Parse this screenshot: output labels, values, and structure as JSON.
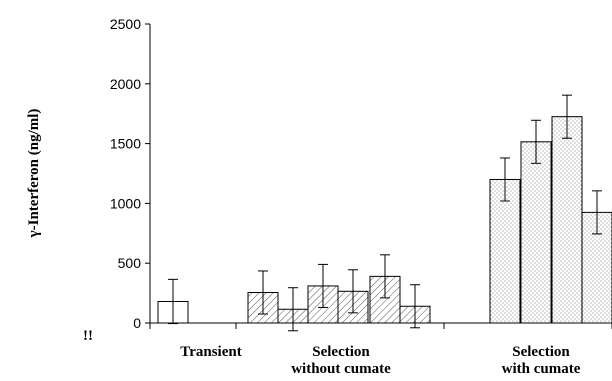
{
  "chart_data": {
    "type": "bar",
    "title": "",
    "xlabel": "",
    "ylabel": "γ-Interferon (ng/ml)",
    "ylim": [
      0,
      2500
    ],
    "yticks": [
      0,
      500,
      1000,
      1500,
      2000,
      2500
    ],
    "grid": false,
    "legend": "none",
    "corner_mark": "!!",
    "groups": [
      {
        "label_lines": [
          "Transient"
        ]
      },
      {
        "label_lines": [
          "Selection",
          "without cumate"
        ]
      },
      {
        "label_lines": [
          "Selection",
          "with cumate"
        ]
      }
    ],
    "bars": [
      {
        "group": 0,
        "value": 180,
        "err": 185,
        "pattern": "none"
      },
      {
        "group": 1,
        "value": 255,
        "err": 180,
        "pattern": "hatch"
      },
      {
        "group": 1,
        "value": 115,
        "err": 180,
        "pattern": "hatch"
      },
      {
        "group": 1,
        "value": 310,
        "err": 180,
        "pattern": "hatch"
      },
      {
        "group": 1,
        "value": 265,
        "err": 180,
        "pattern": "hatch"
      },
      {
        "group": 1,
        "value": 390,
        "err": 180,
        "pattern": "hatch"
      },
      {
        "group": 1,
        "value": 140,
        "err": 180,
        "pattern": "hatch"
      },
      {
        "group": 2,
        "value": 1200,
        "err": 180,
        "pattern": "dots"
      },
      {
        "group": 2,
        "value": 1515,
        "err": 180,
        "pattern": "dots"
      },
      {
        "group": 2,
        "value": 1725,
        "err": 180,
        "pattern": "dots"
      },
      {
        "group": 2,
        "value": 925,
        "err": 180,
        "pattern": "dots"
      }
    ]
  }
}
